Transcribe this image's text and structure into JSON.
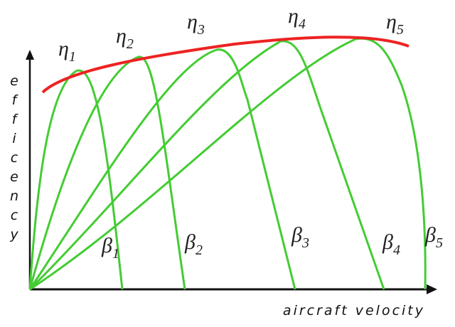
{
  "y_axis_label": [
    "e",
    "f",
    "f",
    "i",
    "c",
    "e",
    "n",
    "c",
    "y"
  ],
  "x_axis_label": "aircraft velocity",
  "peak_labels": [
    {
      "symbol": "η",
      "sub": "1"
    },
    {
      "symbol": "η",
      "sub": "2"
    },
    {
      "symbol": "η",
      "sub": "3"
    },
    {
      "symbol": "η",
      "sub": "4"
    },
    {
      "symbol": "η",
      "sub": "5"
    }
  ],
  "pitch_labels": [
    {
      "symbol": "β",
      "sub": "1"
    },
    {
      "symbol": "β",
      "sub": "2"
    },
    {
      "symbol": "β",
      "sub": "3"
    },
    {
      "symbol": "β",
      "sub": "4"
    },
    {
      "symbol": "β",
      "sub": "5"
    }
  ]
}
